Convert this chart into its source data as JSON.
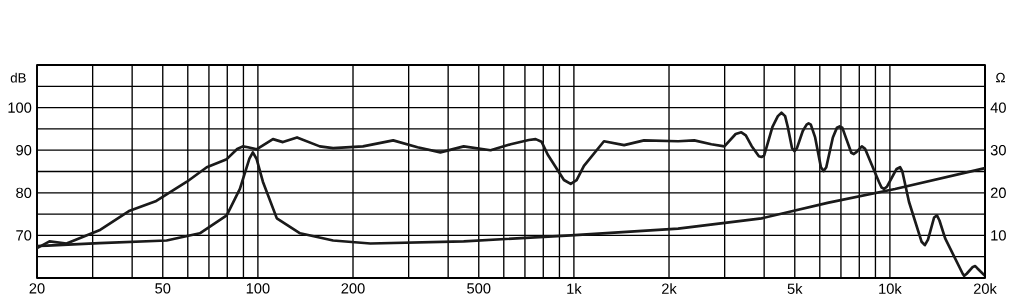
{
  "chart_data": {
    "type": "line",
    "ylabel": "dB",
    "y2label": "Ω",
    "log": "x",
    "grid": true,
    "marker": "none",
    "line_style": "solid",
    "xlim": [
      20,
      20000
    ],
    "ylim": [
      60,
      110
    ],
    "y2lim": [
      0,
      50
    ],
    "xticks": [
      20,
      {
        "value": 30,
        "label": null
      },
      {
        "value": 40,
        "label": null
      },
      50,
      {
        "value": 60,
        "label": null
      },
      {
        "value": 70,
        "label": null
      },
      {
        "value": 80,
        "label": null
      },
      {
        "value": 90,
        "label": null
      },
      100,
      200,
      {
        "value": 300,
        "label": null
      },
      {
        "value": 400,
        "label": null
      },
      500,
      {
        "value": 600,
        "label": null
      },
      {
        "value": 700,
        "label": null
      },
      {
        "value": 800,
        "label": null
      },
      {
        "value": 900,
        "label": null
      },
      {
        "value": 1000,
        "label": "1k"
      },
      {
        "value": 2000,
        "label": "2k"
      },
      {
        "value": 3000,
        "label": null
      },
      {
        "value": 4000,
        "label": null
      },
      {
        "value": 5000,
        "label": "5k"
      },
      {
        "value": 6000,
        "label": null
      },
      {
        "value": 7000,
        "label": null
      },
      {
        "value": 8000,
        "label": null
      },
      {
        "value": 9000,
        "label": null
      },
      {
        "value": 10000,
        "label": "10k"
      },
      {
        "value": 20000,
        "label": "20k"
      }
    ],
    "yticks": [
      {
        "value": 60,
        "label": null
      },
      {
        "value": 65,
        "label": null
      },
      70,
      {
        "value": 75,
        "label": null
      },
      80,
      {
        "value": 85,
        "label": null
      },
      90,
      {
        "value": 95,
        "label": null
      },
      100,
      {
        "value": 105,
        "label": null
      },
      {
        "value": 110,
        "label": null
      }
    ],
    "y2ticks": [
      10,
      20,
      30,
      40
    ],
    "series": [
      {
        "color": "#1a1a1a",
        "x": [
          20,
          21.9,
          24.8,
          31.5,
          39.3,
          47.7,
          59.6,
          68.9,
          79.7,
          86,
          89.6,
          93,
          99,
          111.6,
          120,
          133,
          157,
          173,
          215,
          268,
          320,
          378,
          448,
          545,
          631,
          720,
          757,
          790,
          826,
          930,
          977,
          1020,
          1076,
          1245,
          1442,
          1667,
          2137,
          2404,
          2722,
          2994,
          3250,
          3388,
          3500,
          3650,
          3850,
          3925,
          4000,
          4100,
          4250,
          4420,
          4539,
          4660,
          4750,
          4900,
          4990,
          5080,
          5300,
          5450,
          5530,
          5620,
          5800,
          6050,
          6169,
          6290,
          6600,
          6800,
          6934,
          7070,
          7250,
          7550,
          7689,
          7850,
          8150,
          8350,
          9227,
          9400,
          9580,
          9800,
          10500,
          10770,
          10950,
          11490,
          12600,
          12900,
          13200,
          13800,
          14090,
          14350,
          14960,
          17000,
          17190,
          17500,
          18300,
          18620,
          18900,
          20000
        ],
        "values": [
          67,
          68.6,
          68.1,
          71.2,
          75.8,
          78.1,
          82.6,
          86,
          87.9,
          90.3,
          90.9,
          90.7,
          90.2,
          92.6,
          91.9,
          93,
          90.9,
          90.5,
          90.9,
          92.3,
          90.7,
          89.5,
          90.9,
          90,
          91.4,
          92.4,
          92.6,
          92,
          89,
          83,
          82.1,
          83,
          86.3,
          92.1,
          91.2,
          92.3,
          92.1,
          92.3,
          91.4,
          90.9,
          93.8,
          94.2,
          93.5,
          91,
          88.6,
          88.4,
          88.8,
          91.5,
          95.5,
          98,
          98.8,
          98,
          95.5,
          90.5,
          89.8,
          90.5,
          94.5,
          96,
          96.3,
          96,
          93,
          86,
          85.1,
          86,
          93,
          95.3,
          95.6,
          95.3,
          93,
          89.4,
          89.1,
          89.6,
          90.9,
          90.3,
          82.6,
          81.3,
          80.9,
          81.5,
          85.6,
          86,
          85,
          77.9,
          68.5,
          67.7,
          69,
          74.2,
          74.7,
          73.5,
          69.3,
          61,
          60.5,
          61,
          62.6,
          62.8,
          62.3,
          60.5
        ]
      },
      {
        "color": "#1a1a1a",
        "axis": "y2",
        "x": [
          20,
          31.5,
          51.4,
          65.5,
          79.7,
          87.7,
          94,
          96.4,
          99,
          103.7,
          114.8,
          136,
          173,
          227,
          448,
          977,
          2137,
          3925,
          6397,
          10380,
          20000
        ],
        "values": [
          7.5,
          8.2,
          8.8,
          10.5,
          14.7,
          20.9,
          28,
          29.5,
          28,
          22.6,
          14,
          10.5,
          8.8,
          8.1,
          8.6,
          10,
          11.6,
          14,
          17.7,
          20.9,
          25.8
        ]
      }
    ]
  }
}
